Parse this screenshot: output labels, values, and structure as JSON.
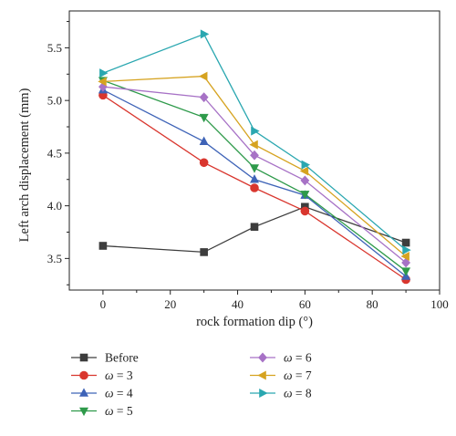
{
  "chart_data": {
    "type": "line",
    "xlabel": "rock formation dip (°)",
    "ylabel": "Left arch displacement (mm)",
    "xlim": [
      -10,
      100
    ],
    "ylim": [
      3.2,
      5.85
    ],
    "xticks": [
      0,
      20,
      40,
      60,
      80,
      100
    ],
    "yticks": [
      3.5,
      4.0,
      4.5,
      5.0,
      5.5
    ],
    "ytick_labels": [
      "3.5",
      "4.0",
      "4.5",
      "5.0",
      "5.5"
    ],
    "grid": false,
    "legend_position": "bottom",
    "x": [
      0,
      30,
      45,
      60,
      90
    ],
    "series": [
      {
        "name": "Before",
        "marker": "square",
        "color": "#3d3d3d",
        "values": [
          3.62,
          3.56,
          3.8,
          3.99,
          3.65
        ]
      },
      {
        "name": "ω = 3",
        "marker": "circle",
        "color": "#d9362e",
        "values": [
          5.05,
          4.41,
          4.17,
          3.95,
          3.3
        ]
      },
      {
        "name": "ω = 4",
        "marker": "triangle-up",
        "color": "#3e63b7",
        "values": [
          5.1,
          4.61,
          4.25,
          4.1,
          3.33
        ]
      },
      {
        "name": "ω = 5",
        "marker": "triangle-down",
        "color": "#2e9a4a",
        "values": [
          5.19,
          4.84,
          4.36,
          4.11,
          3.38
        ]
      },
      {
        "name": "ω = 6",
        "marker": "diamond",
        "color": "#a772c6",
        "values": [
          5.13,
          5.03,
          4.48,
          4.24,
          3.46
        ]
      },
      {
        "name": "ω = 7",
        "marker": "triangle-left",
        "color": "#d6a320",
        "values": [
          5.18,
          5.23,
          4.58,
          4.33,
          3.52
        ]
      },
      {
        "name": "ω = 8",
        "marker": "triangle-right",
        "color": "#2aa7b0",
        "values": [
          5.26,
          5.63,
          4.71,
          4.39,
          3.58
        ]
      }
    ]
  }
}
